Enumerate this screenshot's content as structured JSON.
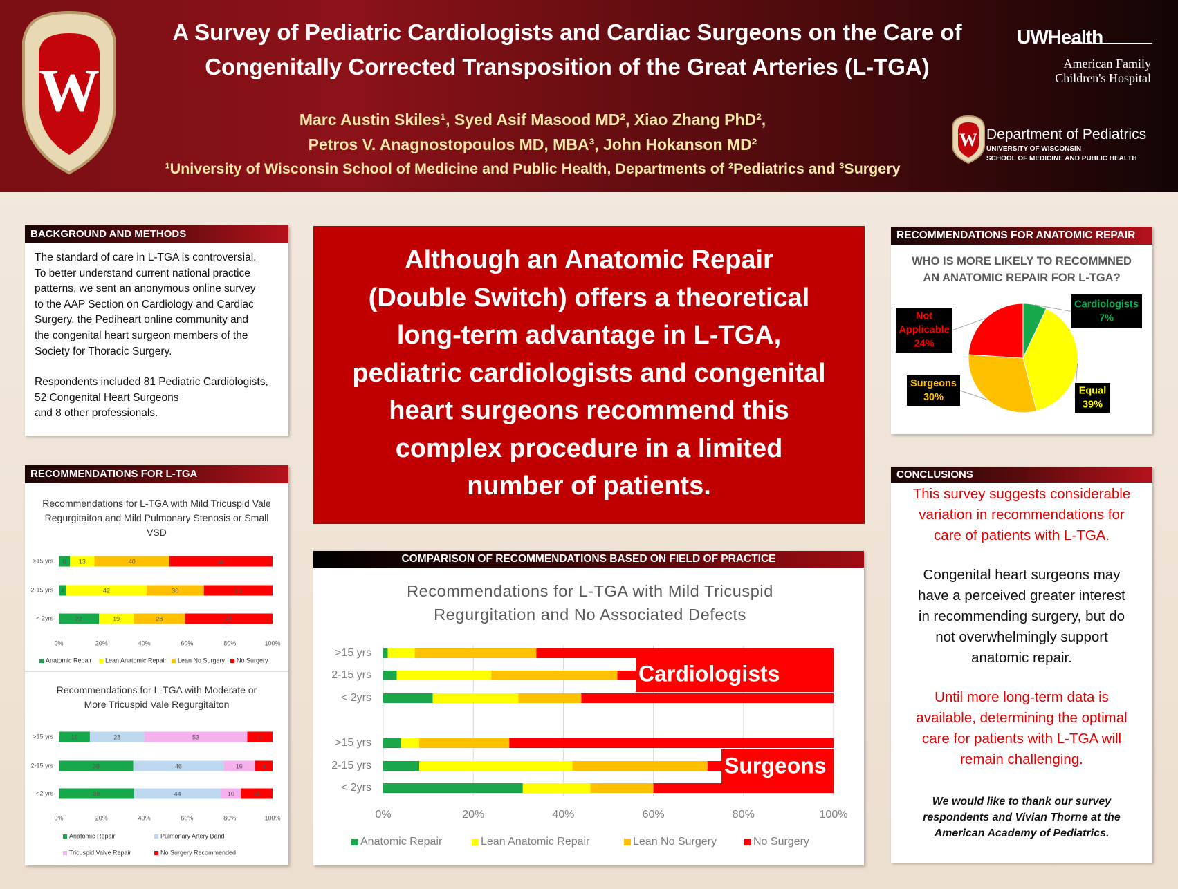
{
  "header": {
    "title_lines": [
      "A Survey of Pediatric Cardiologists and Cardiac Surgeons on the Care of",
      "Congenitally Corrected Transposition of the Great Arteries (L-TGA)"
    ],
    "author_lines": [
      "Marc Austin Skiles¹, Syed Asif Masood MD², Xiao Zhang PhD²,",
      "Petros  V. Anagnostopoulos MD, MBA³, John Hokanson MD²"
    ],
    "affiliation": "¹University of Wisconsin School of Medicine and Public Health, Departments of ²Pediatrics and ³Surgery",
    "logo_letter": "W",
    "uw_health": "UWHealth",
    "hospital_lines": [
      "American Family",
      "Children's Hospital"
    ],
    "dept": "Department of Pediatrics",
    "dept_sub_lines": [
      "UNIVERSITY OF WISCONSIN",
      "SCHOOL OF MEDICINE AND PUBLIC HEALTH"
    ]
  },
  "background": {
    "heading": "BACKGROUND AND METHODS",
    "paragraphs": [
      [
        "The standard of care  in L-TGA is controversial.",
        "To better understand current national practice",
        "patterns, we sent an anonymous online survey",
        "to the AAP Section on Cardiology and Cardiac",
        "Surgery, the Pediheart online community and",
        "the congenital heart surgeon members of the",
        "Society for Thoracic Surgery."
      ],
      [
        "Respondents included 81 Pediatric Cardiologists,",
        "52 Congenital Heart Surgeons",
        "and 8 other professionals."
      ]
    ]
  },
  "recommendations": {
    "heading": "RECOMMENDATIONS FOR L-TGA"
  },
  "highlight": {
    "lines": [
      "Although an Anatomic Repair",
      "(Double Switch) offers a theoretical",
      "long-term advantage in L-TGA,",
      "pediatric cardiologists and congenital",
      "heart surgeons recommend this",
      "complex procedure in a limited",
      "number of patients."
    ]
  },
  "comparison": {
    "heading": "COMPARISON OF RECOMMENDATIONS BASED ON FIELD OF PRACTICE"
  },
  "anatomic": {
    "heading": "RECOMMENDATIONS FOR ANATOMIC REPAIR"
  },
  "conclusions": {
    "heading": "CONCLUSIONS",
    "paragraphs": [
      {
        "color": "#e00000",
        "lines": [
          "This survey suggests considerable",
          "variation in recommendations for",
          "care of patients with L-TGA."
        ]
      },
      {
        "color": "#111111",
        "lines": [
          "Congenital heart surgeons may",
          "have a perceived greater interest",
          "in recommending surgery, but do",
          "not overwhelmingly support",
          "anatomic repair."
        ]
      },
      {
        "color": "#e00000",
        "lines": [
          "Until more long-term data is",
          "available, determining the optimal",
          "care for patients with L-TGA will",
          "remain challenging."
        ]
      }
    ],
    "thanks_lines": [
      "We would like to thank our survey",
      "respondents and Vivian Thorne at the",
      "American Academy of Pediatrics."
    ]
  },
  "chart_data": [
    {
      "type": "stacked-bar",
      "orientation": "horizontal",
      "stack": "percent",
      "data_labels": true,
      "grid": false,
      "title": "Recommendations for  L-TGA with Mild Tricuspid Vale Regurgitaiton and Mild Pulmonary Stenosis or Small VSD",
      "categories": [
        ">15 yrs",
        "2-15 yrs",
        "< 2yrs"
      ],
      "series": [
        {
          "name": "Anatomic Repair",
          "color": "#16a84a",
          "values": [
            6,
            4,
            22
          ]
        },
        {
          "name": "Lean Anatomic Repair",
          "color": "#ffff00",
          "values": [
            13,
            42,
            19
          ]
        },
        {
          "name": "Lean No Surgery",
          "color": "#ffc000",
          "values": [
            40,
            30,
            28
          ]
        },
        {
          "name": "No Surgery",
          "color": "#ff0000",
          "values": [
            55,
            36,
            48
          ]
        }
      ],
      "xlim": [
        0,
        100
      ],
      "xticks": [
        {
          "value": 0,
          "label": "0%"
        },
        {
          "value": 20,
          "label": "20%"
        },
        {
          "value": 40,
          "label": "40%"
        },
        {
          "value": 60,
          "label": "60%"
        },
        {
          "value": 80,
          "label": "80%"
        },
        {
          "value": 100,
          "label": "100%"
        }
      ]
    },
    {
      "type": "stacked-bar",
      "orientation": "horizontal",
      "stack": "percent",
      "data_labels": true,
      "grid": false,
      "title": "Recommendations for  L-TGA with Moderate or More Tricuspid Vale Regurgitaiton",
      "categories": [
        ">15 yrs",
        "2-15 yrs",
        "<2 yrs"
      ],
      "series": [
        {
          "name": "Anatomic Repair",
          "color": "#16a84a",
          "values": [
            16,
            38,
            38
          ]
        },
        {
          "name": "Pulmonary Artery Band",
          "color": "#bdd7ee",
          "values": [
            28,
            46,
            44
          ]
        },
        {
          "name": "Tricuspid Valve Repair",
          "color": "#f5b0ee",
          "values": [
            53,
            16,
            10
          ]
        },
        {
          "name": "No Surgery Recommended",
          "color": "#ff0000",
          "values": [
            13,
            9,
            16
          ]
        }
      ],
      "xlim": [
        0,
        100
      ],
      "xticks": [
        {
          "value": 0,
          "label": "0%"
        },
        {
          "value": 20,
          "label": "20%"
        },
        {
          "value": 40,
          "label": "40%"
        },
        {
          "value": 60,
          "label": "60%"
        },
        {
          "value": 80,
          "label": "80%"
        },
        {
          "value": 100,
          "label": "100%"
        }
      ]
    },
    {
      "type": "stacked-bar",
      "orientation": "horizontal",
      "stack": "percent",
      "data_labels": false,
      "grid": true,
      "title": "Recommendations for L-TGA with Mild Tricuspid Regurgitation and No Associated Defects",
      "categories": [
        ">15 yrs",
        "2-15 yrs",
        "< 2yrs",
        ">15 yrs",
        "2-15 yrs",
        "< 2yrs"
      ],
      "groups": [
        "Cardiologists",
        "Surgeons"
      ],
      "series": [
        {
          "name": "Anatomic Repair",
          "color": "#1aa64a",
          "values": [
            1,
            3,
            11,
            4,
            8,
            31
          ]
        },
        {
          "name": "Lean Anatomic Repair",
          "color": "#ffff00",
          "values": [
            6,
            21,
            19,
            4,
            34,
            15
          ]
        },
        {
          "name": "Lean No Surgery",
          "color": "#ffc000",
          "values": [
            27,
            28,
            14,
            20,
            30,
            14
          ]
        },
        {
          "name": "No Surgery",
          "color": "#ff0000",
          "values": [
            66,
            48,
            56,
            72,
            28,
            40
          ]
        }
      ],
      "xlim": [
        0,
        100
      ],
      "xticks": [
        {
          "value": 0,
          "label": "0%"
        },
        {
          "value": 20,
          "label": "20%"
        },
        {
          "value": 40,
          "label": "40%"
        },
        {
          "value": 60,
          "label": "60%"
        },
        {
          "value": 80,
          "label": "80%"
        },
        {
          "value": 100,
          "label": "100%"
        }
      ]
    },
    {
      "type": "pie",
      "title": "WHO IS MORE LIKELY TO RECOMMNED AN ANATOMIC REPAIR FOR L-TGA?",
      "categories": [
        "Cardiologists",
        "Equal",
        "Surgeons",
        "Not Applicable"
      ],
      "values": [
        7,
        39,
        30,
        24
      ],
      "value_labels": [
        "7%",
        "39%",
        "30%",
        "24%"
      ],
      "colors": [
        "#16a84a",
        "#ffff00",
        "#ffc000",
        "#ff0000"
      ],
      "label_colors": [
        "#00b050",
        "#ffff00",
        "#ffc000",
        "#ff0000"
      ]
    }
  ]
}
